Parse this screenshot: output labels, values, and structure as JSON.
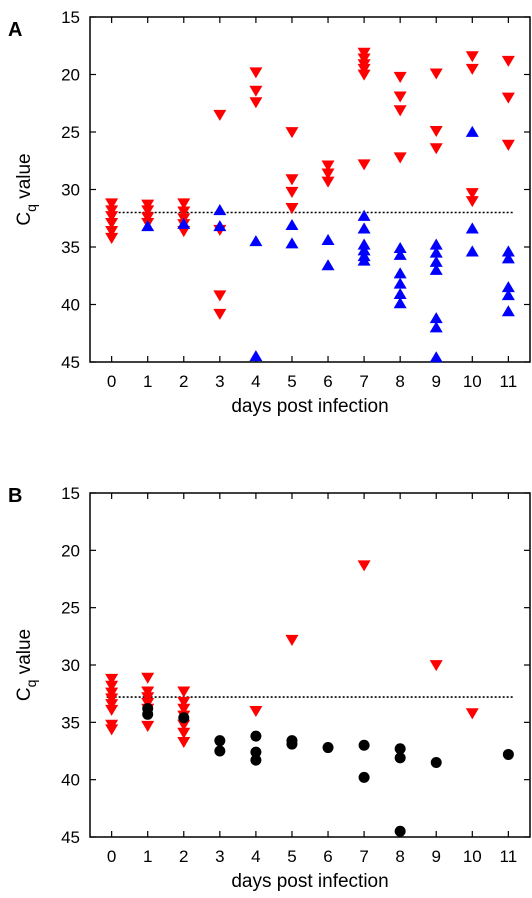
{
  "chart_data": [
    {
      "panel": "A",
      "type": "scatter",
      "xlabel": "days post infection",
      "ylabel": "C",
      "ylabel_sub": "q",
      "ylabel_suffix": " value",
      "x_ticks": [
        0,
        1,
        2,
        3,
        4,
        5,
        6,
        7,
        8,
        9,
        10,
        11
      ],
      "y_ticks": [
        15,
        20,
        25,
        30,
        35,
        40,
        45
      ],
      "xlim": [
        -0.6,
        11.6
      ],
      "ylim": [
        15,
        45
      ],
      "y_inverted": true,
      "threshold": 32,
      "colors": {
        "down_triangle": "#ff0000",
        "up_triangle": "#0000ff",
        "threshold": "#000000"
      },
      "series": [
        {
          "marker": "down-triangle",
          "points": [
            [
              0,
              31.2
            ],
            [
              0,
              31.8
            ],
            [
              0,
              32.3
            ],
            [
              0,
              32.9
            ],
            [
              0,
              33.6
            ],
            [
              0,
              34.2
            ],
            [
              1,
              31.3
            ],
            [
              1,
              31.8
            ],
            [
              1,
              32.4
            ],
            [
              1,
              32.9
            ],
            [
              2,
              31.2
            ],
            [
              2,
              31.9
            ],
            [
              2,
              32.5
            ],
            [
              2,
              33.0
            ],
            [
              2,
              33.6
            ],
            [
              3,
              23.5
            ],
            [
              3,
              33.5
            ],
            [
              3,
              39.2
            ],
            [
              3,
              40.8
            ],
            [
              4,
              19.8
            ],
            [
              4,
              21.4
            ],
            [
              4,
              22.4
            ],
            [
              5,
              25.0
            ],
            [
              5,
              29.1
            ],
            [
              5,
              30.2
            ],
            [
              5,
              31.6
            ],
            [
              6,
              27.9
            ],
            [
              6,
              28.6
            ],
            [
              6,
              29.3
            ],
            [
              7,
              18.1
            ],
            [
              7,
              18.6
            ],
            [
              7,
              19.1
            ],
            [
              7,
              19.5
            ],
            [
              7,
              20.0
            ],
            [
              7,
              27.8
            ],
            [
              8,
              20.2
            ],
            [
              8,
              21.9
            ],
            [
              8,
              23.1
            ],
            [
              8,
              27.2
            ],
            [
              9,
              19.9
            ],
            [
              9,
              24.9
            ],
            [
              9,
              26.4
            ],
            [
              10,
              18.4
            ],
            [
              10,
              19.5
            ],
            [
              10,
              30.3
            ],
            [
              10,
              31.0
            ],
            [
              11,
              18.8
            ],
            [
              11,
              22.0
            ],
            [
              11,
              26.1
            ]
          ]
        },
        {
          "marker": "up-triangle",
          "points": [
            [
              1,
              33.2
            ],
            [
              2,
              33.0
            ],
            [
              3,
              31.8
            ],
            [
              3,
              33.2
            ],
            [
              4,
              34.5
            ],
            [
              4,
              44.5
            ],
            [
              5,
              33.1
            ],
            [
              5,
              34.7
            ],
            [
              6,
              34.4
            ],
            [
              6,
              36.6
            ],
            [
              7,
              32.3
            ],
            [
              7,
              33.4
            ],
            [
              7,
              34.8
            ],
            [
              7,
              35.3
            ],
            [
              7,
              35.8
            ],
            [
              7,
              36.2
            ],
            [
              8,
              35.1
            ],
            [
              8,
              35.7
            ],
            [
              8,
              37.3
            ],
            [
              8,
              38.2
            ],
            [
              8,
              39.1
            ],
            [
              8,
              39.9
            ],
            [
              9,
              34.8
            ],
            [
              9,
              35.5
            ],
            [
              9,
              36.3
            ],
            [
              9,
              37.0
            ],
            [
              9,
              41.2
            ],
            [
              9,
              42.0
            ],
            [
              9,
              44.6
            ],
            [
              10,
              25.0
            ],
            [
              10,
              33.4
            ],
            [
              10,
              35.4
            ],
            [
              11,
              35.4
            ],
            [
              11,
              36.0
            ],
            [
              11,
              38.5
            ],
            [
              11,
              39.2
            ],
            [
              11,
              40.6
            ]
          ]
        }
      ]
    },
    {
      "panel": "B",
      "type": "scatter",
      "xlabel": "days post infection",
      "ylabel": "C",
      "ylabel_sub": "q",
      "ylabel_suffix": " value",
      "x_ticks": [
        0,
        1,
        2,
        3,
        4,
        5,
        6,
        7,
        8,
        9,
        10,
        11
      ],
      "y_ticks": [
        15,
        20,
        25,
        30,
        35,
        40,
        45
      ],
      "xlim": [
        -0.6,
        11.6
      ],
      "ylim": [
        15,
        45
      ],
      "y_inverted": true,
      "threshold": 32.8,
      "colors": {
        "down_triangle": "#ff0000",
        "circle": "#000000",
        "threshold": "#000000"
      },
      "series": [
        {
          "marker": "down-triangle",
          "points": [
            [
              0,
              31.2
            ],
            [
              0,
              31.8
            ],
            [
              0,
              32.4
            ],
            [
              0,
              32.9
            ],
            [
              0,
              33.4
            ],
            [
              0,
              33.9
            ],
            [
              0,
              35.2
            ],
            [
              0,
              35.6
            ],
            [
              1,
              31.1
            ],
            [
              1,
              32.3
            ],
            [
              1,
              32.8
            ],
            [
              1,
              33.3
            ],
            [
              1,
              33.8
            ],
            [
              1,
              35.3
            ],
            [
              2,
              32.3
            ],
            [
              2,
              33.2
            ],
            [
              2,
              33.8
            ],
            [
              2,
              34.4
            ],
            [
              2,
              35.2
            ],
            [
              2,
              35.9
            ],
            [
              2,
              36.7
            ],
            [
              4,
              34.0
            ],
            [
              5,
              27.8
            ],
            [
              7,
              21.3
            ],
            [
              9,
              30.0
            ],
            [
              10,
              34.2
            ]
          ]
        },
        {
          "marker": "circle",
          "points": [
            [
              1,
              33.8
            ],
            [
              1,
              34.3
            ],
            [
              2,
              34.6
            ],
            [
              3,
              36.6
            ],
            [
              3,
              37.5
            ],
            [
              4,
              36.2
            ],
            [
              4,
              37.6
            ],
            [
              4,
              38.3
            ],
            [
              5,
              36.6
            ],
            [
              5,
              36.9
            ],
            [
              6,
              37.2
            ],
            [
              7,
              37.0
            ],
            [
              7,
              39.8
            ],
            [
              8,
              37.3
            ],
            [
              8,
              38.1
            ],
            [
              8,
              44.5
            ],
            [
              9,
              38.5
            ],
            [
              11,
              37.8
            ]
          ]
        }
      ]
    }
  ]
}
